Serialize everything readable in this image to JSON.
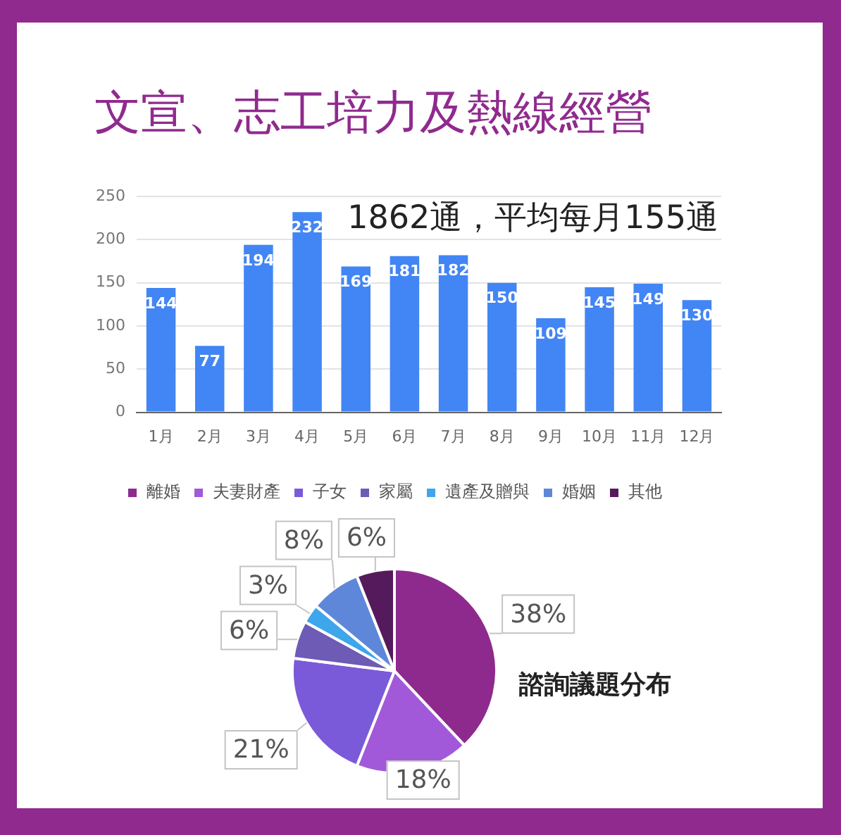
{
  "chart_data": [
    {
      "type": "bar",
      "title": "文宣、志工培力及熱線經營",
      "annotations": [
        "1862通，平均每月155通"
      ],
      "categories": [
        "1月",
        "2月",
        "3月",
        "4月",
        "5月",
        "6月",
        "7月",
        "8月",
        "9月",
        "10月",
        "11月",
        "12月"
      ],
      "values": [
        144,
        77,
        194,
        232,
        169,
        181,
        182,
        150,
        109,
        145,
        149,
        130
      ],
      "color": "#4285f4",
      "ylim": [
        0,
        250
      ],
      "yticks": [
        0,
        50,
        100,
        150,
        200,
        250
      ],
      "grid": "y",
      "data_labels": true
    },
    {
      "type": "pie",
      "title": "諮詢議題分布",
      "categories": [
        "離婚",
        "夫妻財產",
        "子女",
        "家屬",
        "遺產及贈與",
        "婚姻",
        "其他"
      ],
      "values": [
        38,
        18,
        21,
        6,
        3,
        8,
        6
      ],
      "colors": [
        "#8e2a8e",
        "#a259d9",
        "#7a5ad8",
        "#6d5bb5",
        "#3ea6ea",
        "#5f87d9",
        "#551a5c"
      ],
      "value_labels": [
        "38%",
        "18%",
        "21%",
        "6%",
        "3%",
        "8%",
        "6%"
      ],
      "legend": "top"
    }
  ]
}
